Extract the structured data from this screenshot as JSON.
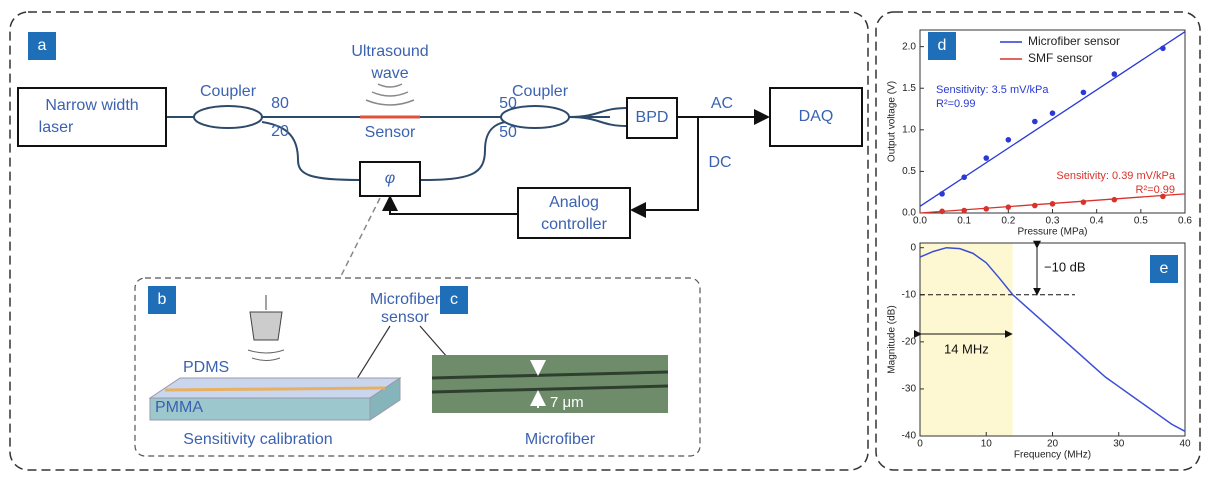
{
  "diagram": {
    "panel_a": {
      "label": "a",
      "laser": [
        "Narrow width",
        "laser"
      ],
      "coupler1": "Coupler",
      "ratio_top": "80",
      "ratio_bottom": "20",
      "ultrasound": [
        "Ultrasound",
        "wave"
      ],
      "sensor": "Sensor",
      "coupler2": "Coupler",
      "ratio2_top": "50",
      "ratio2_bottom": "50",
      "bpd": "BPD",
      "ac": "AC",
      "daq": "DAQ",
      "dc": "DC",
      "phase": "φ",
      "controller": [
        "Analog",
        "controller"
      ]
    },
    "panel_b": {
      "label": "b",
      "pdms": "PDMS",
      "pmma": "PMMA",
      "caption": "Sensitivity calibration"
    },
    "panel_c": {
      "label": "c",
      "width": "7 μm",
      "caption": "Microfiber"
    },
    "callout": [
      "Microfiber",
      "sensor"
    ]
  },
  "chart_data": [
    {
      "type": "scatter",
      "label": "d",
      "xlabel": "Pressure (MPa)",
      "ylabel": "Output voltage (V)",
      "legend": "upper right",
      "xlim": [
        0,
        0.6
      ],
      "xticks": [
        {
          "value": 0,
          "label": "0.0"
        },
        0.1,
        0.2,
        0.3,
        0.4,
        0.5,
        0.6
      ],
      "ylim": [
        0,
        2.2
      ],
      "yticks": [
        {
          "value": 0,
          "label": "0.0"
        },
        0.5,
        {
          "value": 1,
          "label": "1.0"
        },
        1.5,
        {
          "value": 2,
          "label": "2.0"
        }
      ],
      "series": [
        {
          "name": "Microfiber sensor",
          "color": "#2a39d4",
          "x": [
            0.05,
            0.1,
            0.15,
            0.2,
            0.26,
            0.3,
            0.37,
            0.44,
            0.55
          ],
          "values": [
            0.23,
            0.43,
            0.66,
            0.88,
            1.1,
            1.2,
            1.45,
            1.67,
            1.98
          ],
          "fit": {
            "x": [
              0,
              0.6
            ],
            "values": [
              0.08,
              2.18
            ]
          },
          "annotation": [
            "Sensitivity: 3.5 mV/kPa",
            "R²=0.99"
          ]
        },
        {
          "name": "SMF sensor",
          "color": "#d8322c",
          "x": [
            0.05,
            0.1,
            0.15,
            0.2,
            0.26,
            0.3,
            0.37,
            0.44,
            0.55
          ],
          "values": [
            0.02,
            0.03,
            0.05,
            0.07,
            0.09,
            0.11,
            0.13,
            0.16,
            0.2
          ],
          "fit": {
            "x": [
              0,
              0.6
            ],
            "values": [
              0,
              0.23
            ]
          },
          "annotation": [
            "Sensitivity: 0.39 mV/kPa",
            "R²=0.99"
          ]
        }
      ]
    },
    {
      "type": "line",
      "label": "e",
      "xlabel": "Frequency (MHz)",
      "ylabel": "Magnitude (dB)",
      "xlim": [
        0,
        40
      ],
      "xticks": [
        0,
        10,
        20,
        30,
        40
      ],
      "ylim": [
        -40,
        1
      ],
      "yticks": [
        0,
        -10,
        -20,
        -30,
        -40
      ],
      "x": [
        0,
        2,
        4,
        6,
        8,
        10,
        12,
        14,
        16,
        18,
        20,
        22,
        24,
        26,
        28,
        30,
        32,
        34,
        36,
        38,
        40
      ],
      "series": [
        {
          "color": "#3a4fd6",
          "values": [
            -2,
            -0.8,
            0,
            -0.2,
            -1.2,
            -3.2,
            -6.5,
            -10,
            -12.5,
            -15,
            -17.5,
            -20,
            -22.5,
            -25,
            -27.5,
            -29.5,
            -31.5,
            -33.5,
            -35.5,
            -37.5,
            -39
          ]
        }
      ],
      "highlight_x": [
        0,
        14
      ],
      "hline": -10,
      "annotations": [
        "−10 dB",
        "14 MHz"
      ]
    }
  ]
}
